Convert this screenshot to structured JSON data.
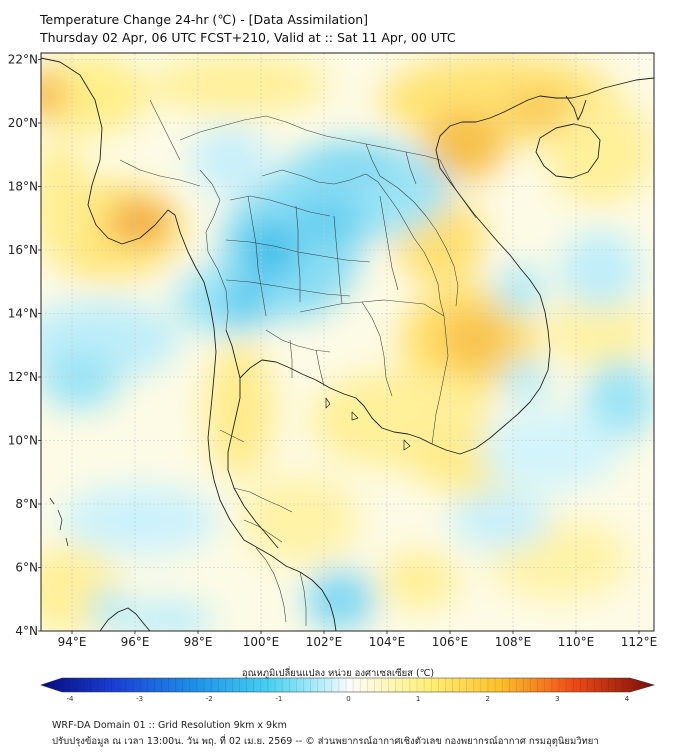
{
  "title": {
    "line1": "Temperature Change 24-hr (℃) - [Data Assimilation]",
    "line2": "Thursday 02 Apr, 06 UTC FCST+210, Valid at :: Sat 11 Apr, 00 UTC"
  },
  "lat_ticks": [
    "4°N",
    "6°N",
    "8°N",
    "10°N",
    "12°N",
    "14°N",
    "16°N",
    "18°N",
    "20°N",
    "22°N"
  ],
  "lon_ticks": [
    "94°E",
    "96°E",
    "98°E",
    "100°E",
    "102°E",
    "104°E",
    "106°E",
    "108°E",
    "110°E",
    "112°E"
  ],
  "colorbar": {
    "label": "อุณหภูมิเปลี่ยนแปลง หน่วย องศาเซลเซียส (℃)",
    "ticks": [
      "-4",
      "-3",
      "-2",
      "-1",
      "0",
      "1",
      "2",
      "3",
      "4"
    ]
  },
  "footer": {
    "line1": "WRF-DA Domain 01 :: Grid Resolution 9km x 9km",
    "line2": "ปรับปรุงข้อมูล ณ เวลา 13:00น. วัน พฤ. ที่ 02 เม.ย. 2569 -- © ส่วนพยากรณ์อากาศเชิงตัวเลข กองพยากรณ์อากาศ กรมอุตุนิยมวิทยา"
  },
  "colors": {
    "warm_yellow": "#fff3a0",
    "warm_orange": "#f5b83a",
    "hot": "#e8862a",
    "cool_light": "#d4f2fb",
    "cool": "#6fd4ef",
    "cold": "#2ab6e6",
    "coast": "#222222",
    "grid": "#bbbbbb"
  }
}
